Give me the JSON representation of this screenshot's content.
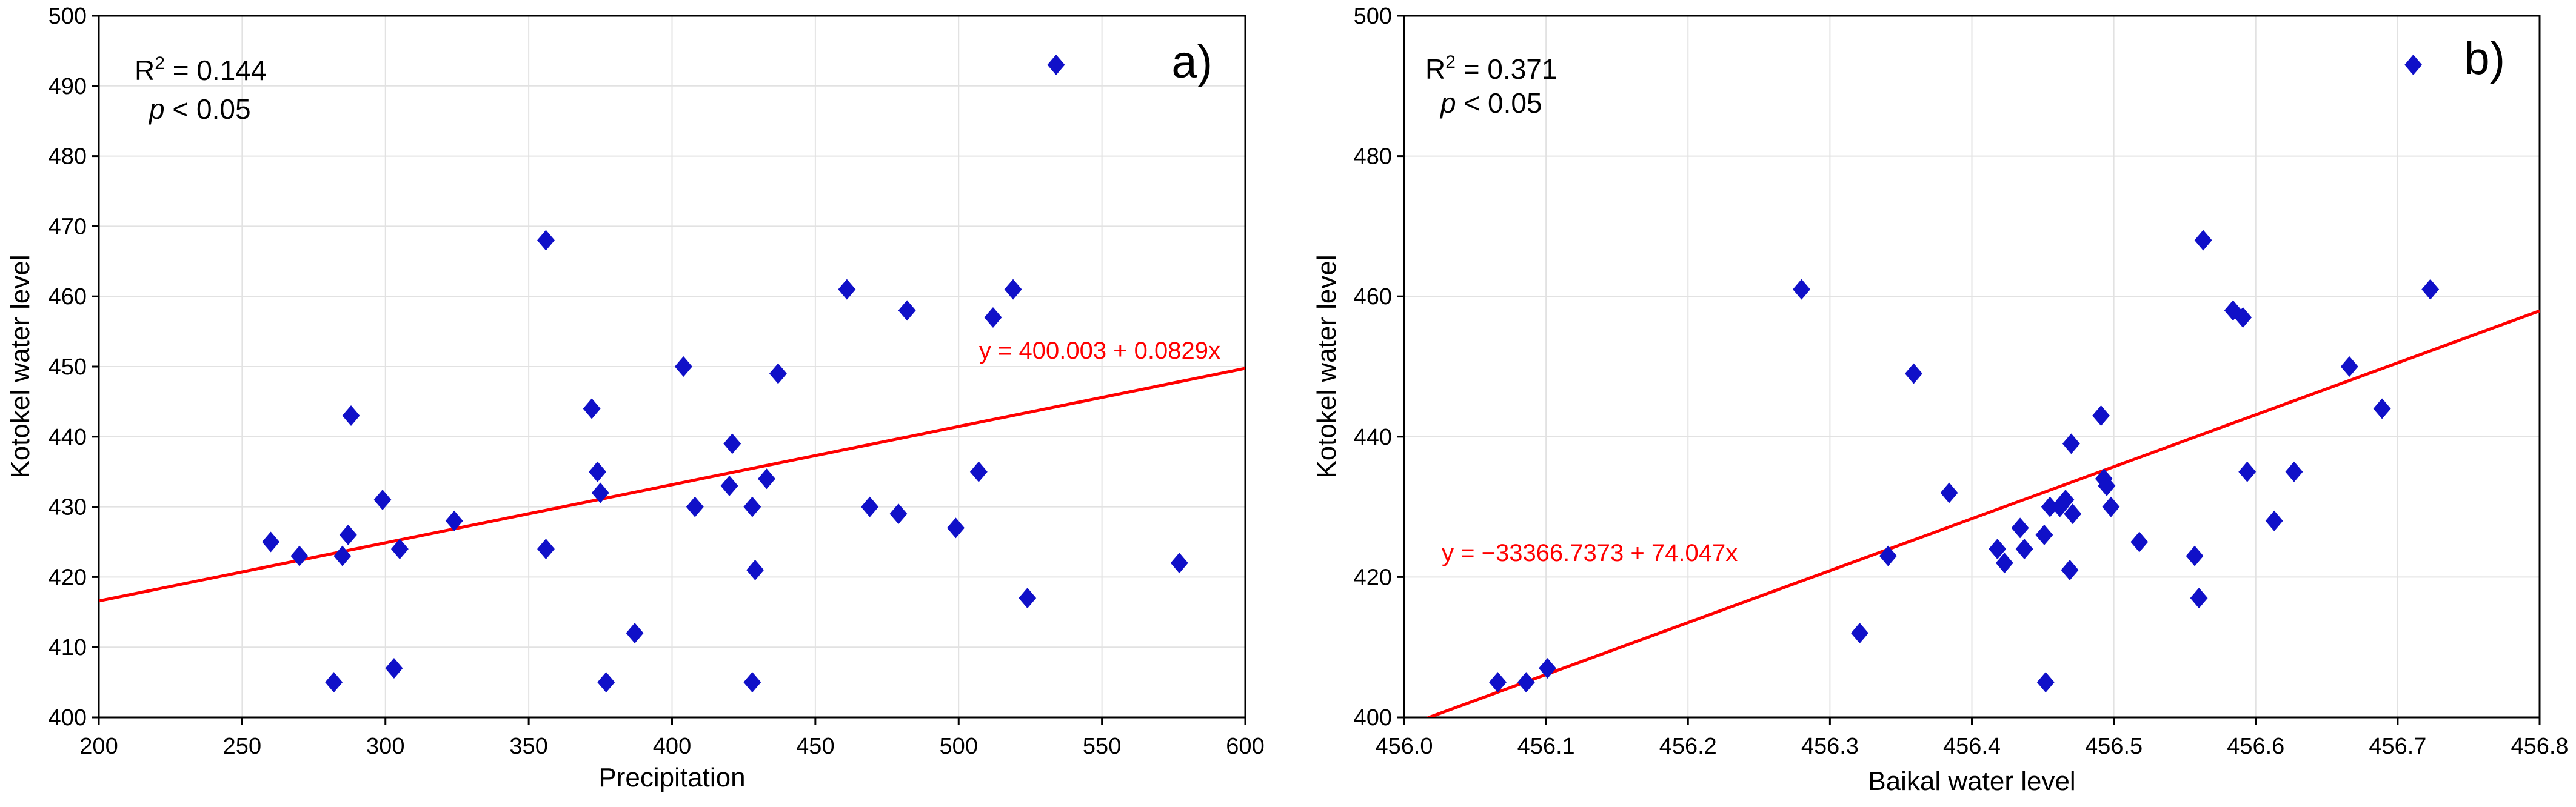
{
  "chart_data": [
    {
      "type": "scatter",
      "panel_label": "a)",
      "title": "",
      "xlabel": "Precipitation",
      "ylabel": "Kotokel water level",
      "xlim": [
        200,
        600
      ],
      "ylim": [
        400,
        500
      ],
      "xticks": [
        200,
        250,
        300,
        350,
        400,
        450,
        500,
        550,
        600
      ],
      "yticks": [
        400,
        410,
        420,
        430,
        440,
        450,
        460,
        470,
        480,
        490,
        500
      ],
      "xtick_labels": [
        "200",
        "250",
        "300",
        "350",
        "400",
        "450",
        "500",
        "550",
        "600"
      ],
      "ytick_labels": [
        "400",
        "410",
        "420",
        "430",
        "440",
        "450",
        "460",
        "470",
        "480",
        "490",
        "500"
      ],
      "grid": true,
      "r2_prefix": "R",
      "r2_sup": "2",
      "r2_value": " = 0.144",
      "p_symbol": "p",
      "p_text": " < 0.05",
      "regression": {
        "intercept": 400.003,
        "slope": 0.0829,
        "label": "y = 400.003 + 0.0829x",
        "color": "#ff0000"
      },
      "marker_color": "#1010c8",
      "points": [
        {
          "x": 260,
          "y": 425
        },
        {
          "x": 270,
          "y": 423
        },
        {
          "x": 282,
          "y": 405
        },
        {
          "x": 285,
          "y": 423
        },
        {
          "x": 287,
          "y": 426
        },
        {
          "x": 288,
          "y": 443
        },
        {
          "x": 299,
          "y": 431
        },
        {
          "x": 303,
          "y": 407
        },
        {
          "x": 305,
          "y": 424
        },
        {
          "x": 324,
          "y": 428
        },
        {
          "x": 356,
          "y": 468
        },
        {
          "x": 356,
          "y": 424
        },
        {
          "x": 372,
          "y": 444
        },
        {
          "x": 374,
          "y": 435
        },
        {
          "x": 375,
          "y": 432
        },
        {
          "x": 377,
          "y": 405
        },
        {
          "x": 387,
          "y": 412
        },
        {
          "x": 404,
          "y": 450
        },
        {
          "x": 408,
          "y": 430
        },
        {
          "x": 420,
          "y": 433
        },
        {
          "x": 421,
          "y": 439
        },
        {
          "x": 428,
          "y": 430
        },
        {
          "x": 428,
          "y": 405
        },
        {
          "x": 429,
          "y": 421
        },
        {
          "x": 433,
          "y": 434
        },
        {
          "x": 437,
          "y": 449
        },
        {
          "x": 461,
          "y": 461
        },
        {
          "x": 469,
          "y": 430
        },
        {
          "x": 479,
          "y": 429
        },
        {
          "x": 482,
          "y": 458
        },
        {
          "x": 499,
          "y": 427
        },
        {
          "x": 507,
          "y": 435
        },
        {
          "x": 512,
          "y": 457
        },
        {
          "x": 519,
          "y": 461
        },
        {
          "x": 524,
          "y": 417
        },
        {
          "x": 534,
          "y": 493
        },
        {
          "x": 577,
          "y": 422
        }
      ]
    },
    {
      "type": "scatter",
      "panel_label": "b)",
      "title": "",
      "xlabel": "Baikal water level",
      "ylabel": "Kotokel water level",
      "xlim": [
        456.0,
        456.8
      ],
      "ylim": [
        400,
        500
      ],
      "xticks": [
        456.0,
        456.1,
        456.2,
        456.3,
        456.4,
        456.5,
        456.6,
        456.7,
        456.8
      ],
      "yticks": [
        400,
        420,
        440,
        460,
        480,
        500
      ],
      "xtick_labels": [
        "456.0",
        "456.1",
        "456.2",
        "456.3",
        "456.4",
        "456.5",
        "456.6",
        "456.7",
        "456.8"
      ],
      "ytick_labels": [
        "400",
        "420",
        "440",
        "460",
        "480",
        "500"
      ],
      "grid": true,
      "r2_prefix": "R",
      "r2_sup": "2",
      "r2_value": " = 0.371",
      "p_symbol": "p",
      "p_text": " < 0.05",
      "regression": {
        "intercept": -33366.7373,
        "slope": 74.047,
        "label": "y = −33366.7373 + 74.047x",
        "color": "#ff0000"
      },
      "marker_color": "#1010c8",
      "points": [
        {
          "x": 456.066,
          "y": 405
        },
        {
          "x": 456.086,
          "y": 405
        },
        {
          "x": 456.101,
          "y": 407
        },
        {
          "x": 456.28,
          "y": 461
        },
        {
          "x": 456.321,
          "y": 412
        },
        {
          "x": 456.341,
          "y": 423
        },
        {
          "x": 456.359,
          "y": 449
        },
        {
          "x": 456.384,
          "y": 432
        },
        {
          "x": 456.418,
          "y": 424
        },
        {
          "x": 456.423,
          "y": 422
        },
        {
          "x": 456.434,
          "y": 427
        },
        {
          "x": 456.437,
          "y": 424
        },
        {
          "x": 456.451,
          "y": 426
        },
        {
          "x": 456.452,
          "y": 405
        },
        {
          "x": 456.455,
          "y": 430
        },
        {
          "x": 456.462,
          "y": 430
        },
        {
          "x": 456.466,
          "y": 431
        },
        {
          "x": 456.469,
          "y": 421
        },
        {
          "x": 456.47,
          "y": 439
        },
        {
          "x": 456.471,
          "y": 429
        },
        {
          "x": 456.491,
          "y": 443
        },
        {
          "x": 456.493,
          "y": 434
        },
        {
          "x": 456.495,
          "y": 433
        },
        {
          "x": 456.498,
          "y": 430
        },
        {
          "x": 456.518,
          "y": 425
        },
        {
          "x": 456.557,
          "y": 423
        },
        {
          "x": 456.56,
          "y": 417
        },
        {
          "x": 456.563,
          "y": 468
        },
        {
          "x": 456.584,
          "y": 458
        },
        {
          "x": 456.591,
          "y": 457
        },
        {
          "x": 456.594,
          "y": 435
        },
        {
          "x": 456.613,
          "y": 428
        },
        {
          "x": 456.627,
          "y": 435
        },
        {
          "x": 456.666,
          "y": 450
        },
        {
          "x": 456.689,
          "y": 444
        },
        {
          "x": 456.711,
          "y": 493
        },
        {
          "x": 456.723,
          "y": 461
        }
      ]
    }
  ]
}
